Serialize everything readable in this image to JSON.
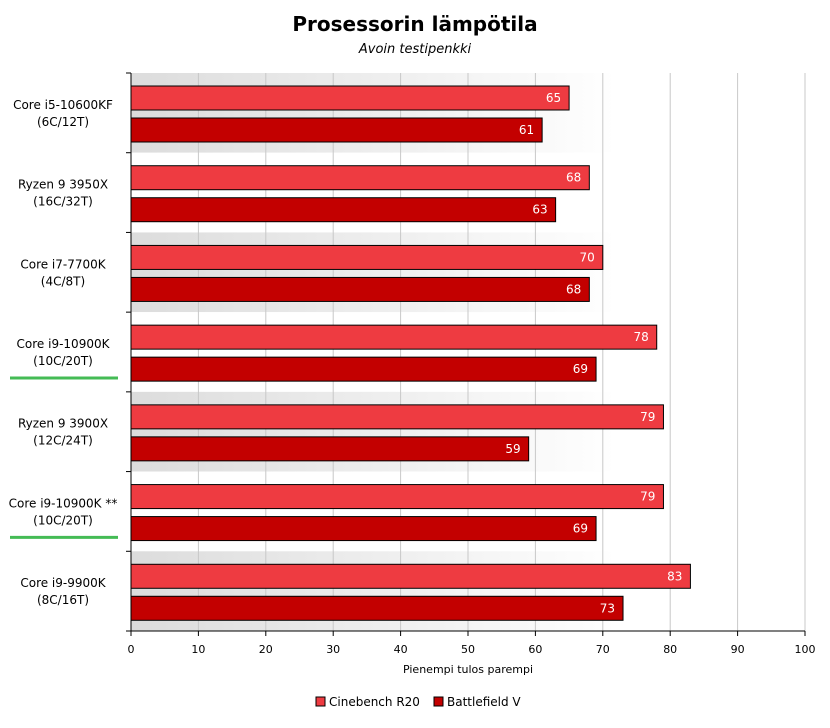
{
  "chart_data": {
    "type": "bar",
    "orientation": "horizontal",
    "title": "Prosessorin lämpötila",
    "subtitle": "Avoin testipenkki",
    "xlabel": "Pienempi tulos parempi",
    "ylabel": "",
    "xlim": [
      0,
      100
    ],
    "ticks": [
      0,
      10,
      20,
      30,
      40,
      50,
      60,
      70,
      80,
      90,
      100
    ],
    "grid": true,
    "legend_position": "bottom",
    "categories": [
      [
        "Core i5-10600KF",
        "(6C/12T)"
      ],
      [
        "Ryzen 9 3950X",
        "(16C/32T)"
      ],
      [
        "Core i7-7700K",
        "(4C/8T)"
      ],
      [
        "Core i9-10900K",
        "(10C/20T)"
      ],
      [
        "Ryzen 9 3900X",
        "(12C/24T)"
      ],
      [
        "Core i9-10900K **",
        "(10C/20T)"
      ],
      [
        "Core i9-9900K",
        "(8C/16T)"
      ]
    ],
    "highlighted_categories": [
      3,
      5
    ],
    "highlight_color": "#44bb55",
    "series": [
      {
        "name": "Cinebench R20",
        "color": "#ee3b41",
        "values": [
          65,
          68,
          70,
          78,
          79,
          79,
          83
        ]
      },
      {
        "name": "Battlefield V",
        "color": "#c30000",
        "values": [
          61,
          63,
          68,
          69,
          59,
          69,
          73
        ]
      }
    ]
  }
}
